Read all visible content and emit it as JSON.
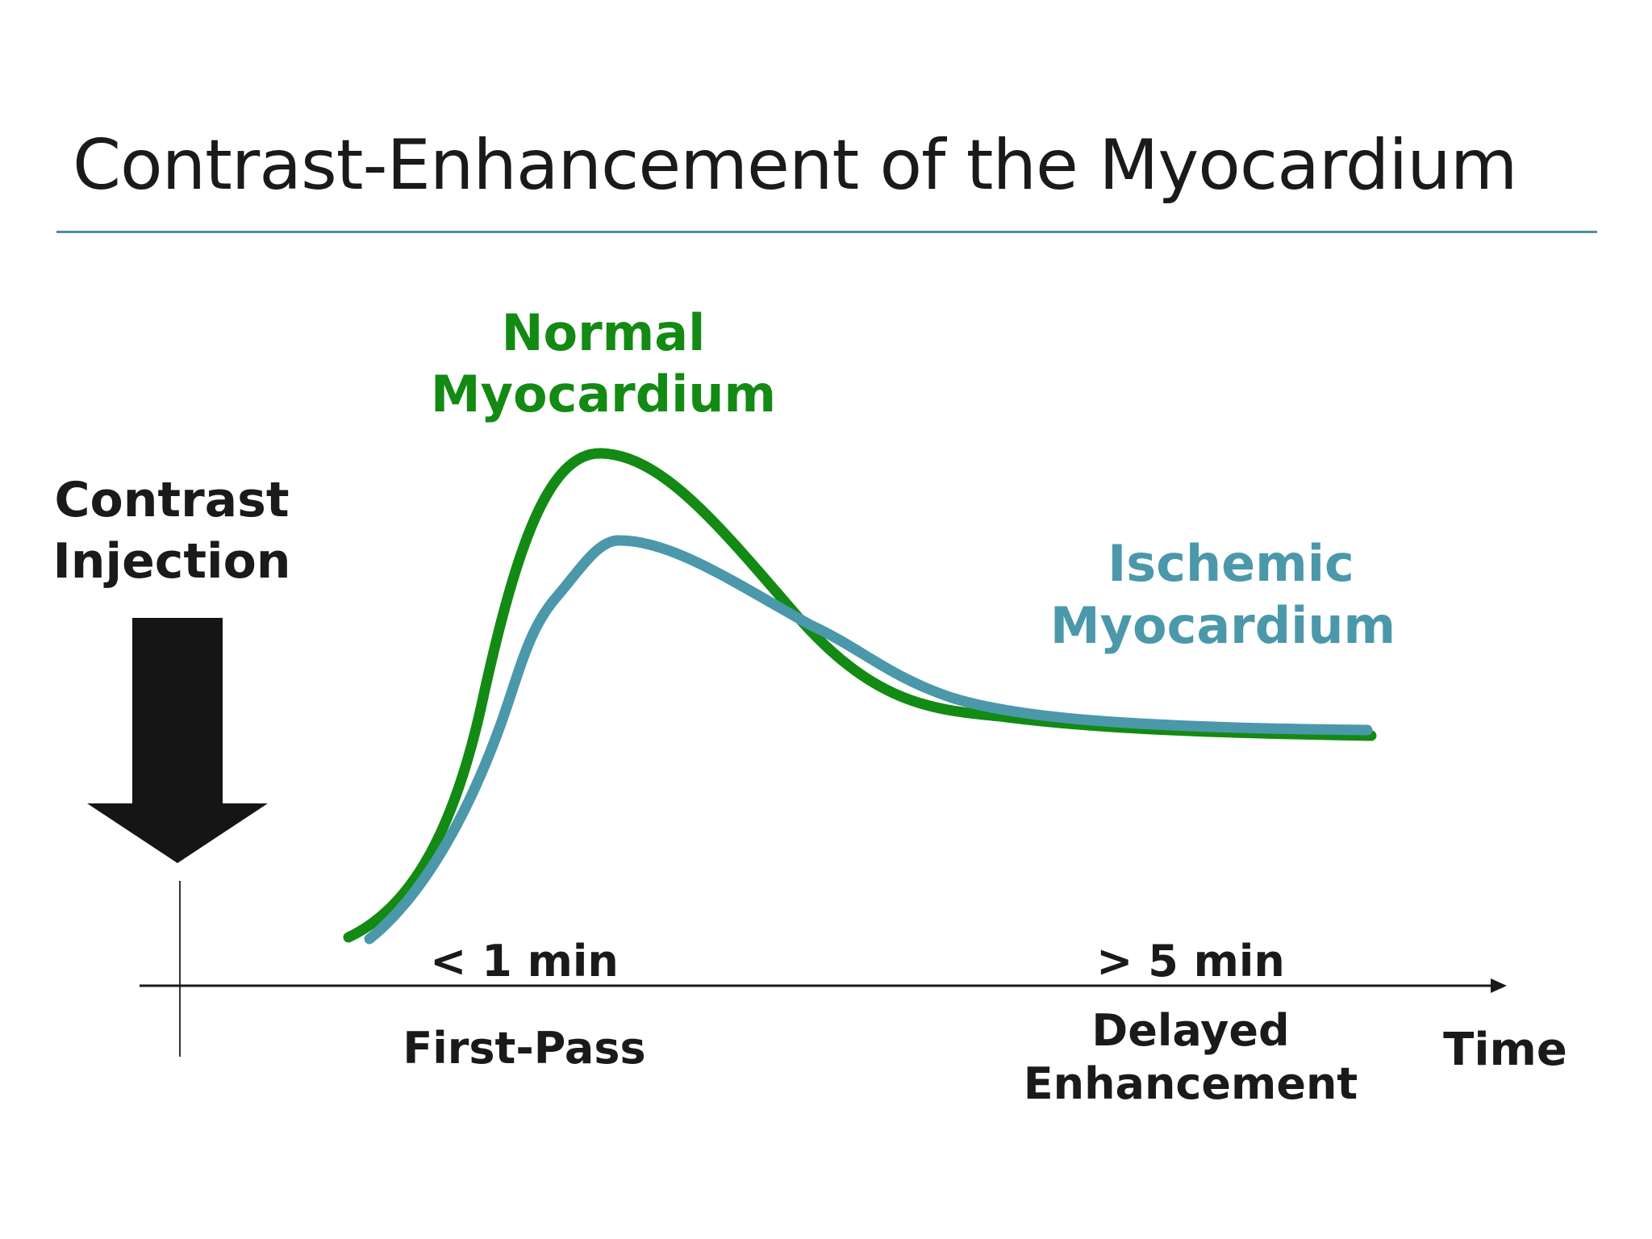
{
  "title": "Contrast-Enhancement of the Myocardium",
  "injection": {
    "line1": "Contrast",
    "line2": "Injection"
  },
  "series": {
    "normal": {
      "line1": "Normal",
      "line2": "Myocardium",
      "color": "#138a13"
    },
    "ischemic": {
      "line1": "Ischemic",
      "line2": "Myocardium",
      "color": "#4b98aa"
    }
  },
  "axis": {
    "time_label": "Time",
    "first_pass_time": "< 1 min",
    "first_pass_label": "First-Pass",
    "delayed_time": "> 5 min",
    "delayed_label_line1": "Delayed",
    "delayed_label_line2": "Enhancement"
  },
  "colors": {
    "rule": "#4a8fa0",
    "arrow": "#151515",
    "text": "#1a1a1a"
  }
}
